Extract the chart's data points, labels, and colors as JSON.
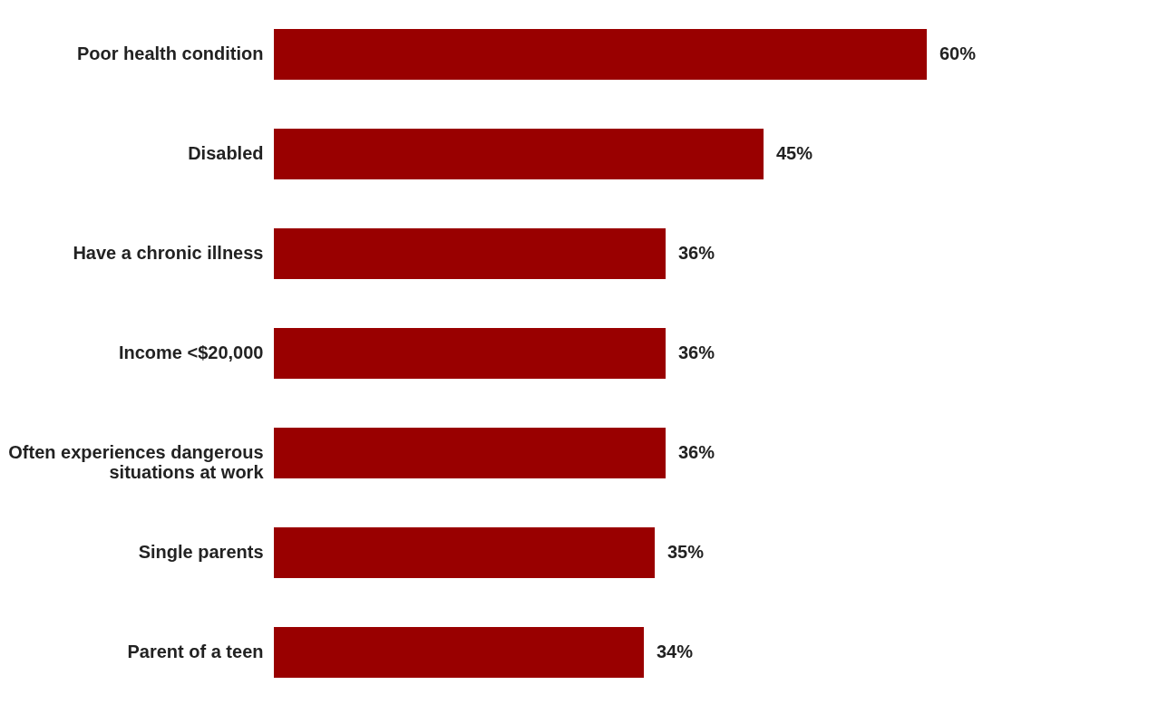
{
  "chart_data": {
    "type": "bar",
    "orientation": "horizontal",
    "categories": [
      "Poor health condition",
      "Disabled",
      "Have a chronic illness",
      "Income <$20,000",
      "Often experiences dangerous situations at work",
      "Single parents",
      "Parent of a teen"
    ],
    "values": [
      60,
      45,
      36,
      36,
      36,
      35,
      34
    ],
    "value_labels": [
      "60%",
      "45%",
      "36%",
      "36%",
      "36%",
      "35%",
      "34%"
    ],
    "color": "#990000"
  }
}
